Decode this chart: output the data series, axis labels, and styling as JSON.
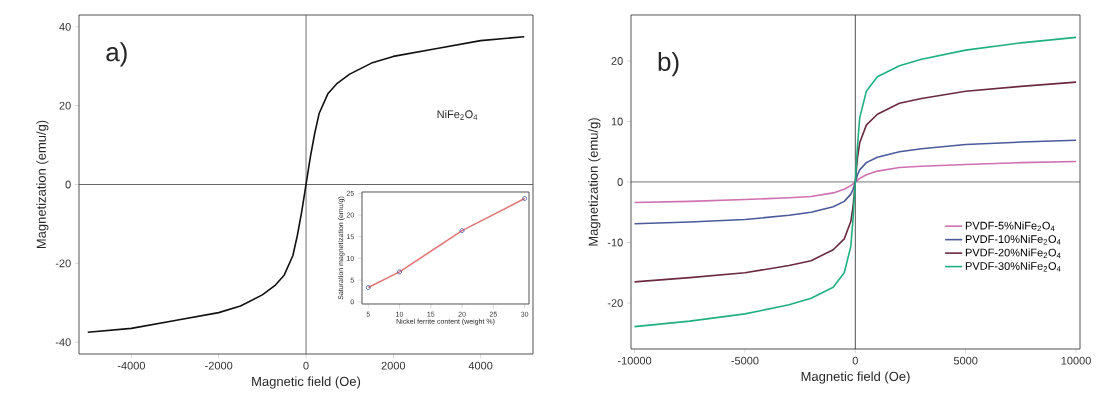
{
  "chart_data": [
    {
      "type": "line",
      "xlabel": "Magnetic field (Oe)",
      "ylabel": "Magnetization (emu/g)",
      "annotations": [
        "a)",
        "NiFe$_{2}$O$_{4}$"
      ],
      "x": [
        -5000,
        -4000,
        -3000,
        -2000,
        -1500,
        -1000,
        -700,
        -500,
        -300,
        -200,
        -100,
        0,
        100,
        200,
        300,
        500,
        700,
        1000,
        1500,
        2000,
        3000,
        4000,
        5000
      ],
      "series": [
        {
          "color": "#111111",
          "values": [
            -37.5,
            -36.5,
            -34.5,
            -32.5,
            -30.8,
            -28,
            -25.5,
            -23,
            -18,
            -13,
            -7,
            0,
            7,
            13,
            18,
            23,
            25.5,
            28,
            30.8,
            32.5,
            34.5,
            36.5,
            37.5
          ]
        }
      ],
      "xlim": [
        -5200,
        5200
      ],
      "ylim": [
        -43,
        43
      ],
      "xticks": [
        -4000,
        -2000,
        0,
        2000,
        4000
      ],
      "yticks": [
        -40,
        -20,
        0,
        20,
        40
      ],
      "ref_lines": [
        {
          "axis": "x",
          "value": 0,
          "color": "#555555"
        },
        {
          "axis": "y",
          "value": 0,
          "color": "#555555"
        }
      ]
    },
    {
      "type": "line",
      "xlabel": "Nickel ferrite content (weight %)",
      "ylabel": "Saturation magnetization (emu/g)",
      "x": [
        5,
        10,
        20,
        30
      ],
      "series": [
        {
          "color": "#e07878",
          "values": [
            3.3,
            6.9,
            16.4,
            23.8
          ]
        },
        {
          "type": "scatter",
          "marker": "circle",
          "color": "#3a4aa0",
          "values": [
            3.3,
            6.9,
            16.4,
            23.8
          ]
        }
      ],
      "xlim": [
        4,
        30.7
      ],
      "ylim": [
        -0.5,
        25.3
      ],
      "xticks": [
        5,
        10,
        15,
        20,
        25,
        30
      ],
      "yticks": [
        0,
        5,
        10,
        15,
        20,
        25
      ]
    },
    {
      "type": "line",
      "xlabel": "Magnetic field (Oe)",
      "ylabel": "Magnetization (emu/g)",
      "annotations": [
        "b)"
      ],
      "legend": "bottom right",
      "x": [
        -10000,
        -7500,
        -5000,
        -3000,
        -2000,
        -1000,
        -500,
        -200,
        -100,
        0,
        100,
        200,
        500,
        1000,
        2000,
        3000,
        5000,
        7500,
        10000
      ],
      "series": [
        {
          "name": "PVDF-5%NiFe$_{2}$O$_{4}$",
          "color": "#d070b0",
          "values": [
            -3.4,
            -3.2,
            -2.9,
            -2.6,
            -2.4,
            -1.8,
            -1.2,
            -0.6,
            -0.3,
            0,
            0.3,
            0.6,
            1.2,
            1.8,
            2.4,
            2.6,
            2.9,
            3.2,
            3.4
          ]
        },
        {
          "name": "PVDF-10%NiFe$_{2}$O$_{4}$",
          "color": "#4a5a9a",
          "values": [
            -6.9,
            -6.6,
            -6.2,
            -5.5,
            -5,
            -4.1,
            -3.2,
            -2,
            -1.2,
            0,
            1.2,
            2,
            3.2,
            4.1,
            5,
            5.5,
            6.2,
            6.6,
            6.9
          ]
        },
        {
          "name": "PVDF-20%NiFe$_{2}$O$_{4}$",
          "color": "#6a2a40",
          "values": [
            -16.5,
            -15.8,
            -15,
            -13.8,
            -13,
            -11.2,
            -9.4,
            -6.5,
            -4,
            0,
            4,
            6.5,
            9.4,
            11.2,
            13,
            13.8,
            15,
            15.8,
            16.5
          ]
        },
        {
          "name": "PVDF-30%NiFe$_{2}$O$_{4}$",
          "color": "#20b080",
          "values": [
            -23.9,
            -23,
            -21.8,
            -20.3,
            -19.2,
            -17.4,
            -15,
            -10.6,
            -6,
            0,
            6,
            10.6,
            15,
            17.4,
            19.2,
            20.3,
            21.8,
            23,
            23.9
          ]
        }
      ],
      "xlim": [
        -10160,
        10180
      ],
      "ylim": [
        -27.6,
        27.6
      ],
      "xticks": [
        -10000,
        -5000,
        0,
        5000,
        10000
      ],
      "yticks": [
        -20,
        -10,
        0,
        10,
        20
      ],
      "ref_lines": [
        {
          "axis": "x",
          "value": 0,
          "color": "#333333"
        },
        {
          "axis": "y",
          "value": 0,
          "color": "#555555"
        }
      ]
    }
  ]
}
